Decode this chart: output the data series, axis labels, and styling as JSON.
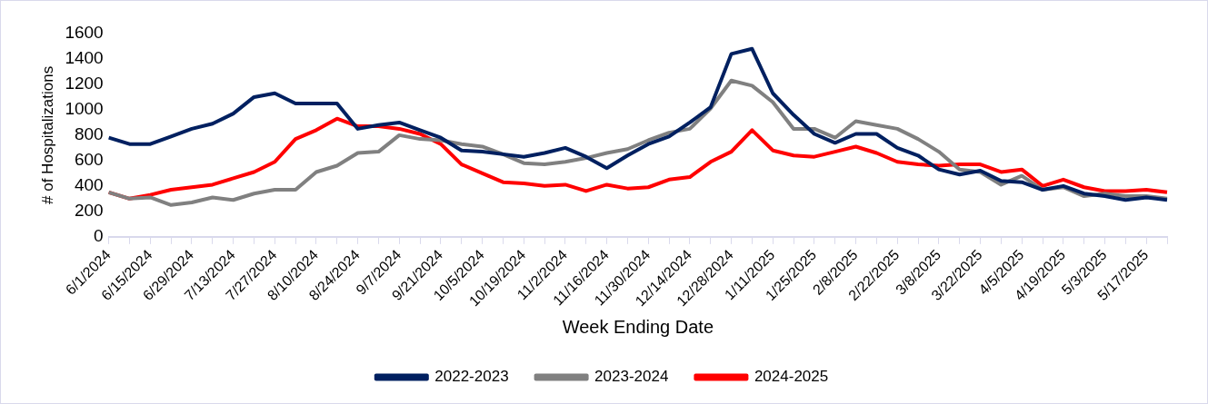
{
  "chart_data": {
    "type": "line",
    "xlabel": "Week Ending Date",
    "ylabel": "# of Hospitalizations",
    "categories": [
      "6/1/2024",
      null,
      "6/15/2024",
      null,
      "6/29/2024",
      null,
      "7/13/2024",
      null,
      "7/27/2024",
      null,
      "8/10/2024",
      null,
      "8/24/2024",
      null,
      "9/7/2024",
      null,
      "9/21/2024",
      null,
      "10/5/2024",
      null,
      "10/19/2024",
      null,
      "11/2/2024",
      null,
      "11/16/2024",
      null,
      "11/30/2024",
      null,
      "12/14/2024",
      null,
      "12/28/2024",
      null,
      "1/11/2025",
      null,
      "1/25/2025",
      null,
      "2/8/2025",
      null,
      "2/22/2025",
      null,
      "3/8/2025",
      null,
      "3/22/2025",
      null,
      "4/5/2025",
      null,
      "4/19/2025",
      null,
      "5/3/2025",
      null,
      "5/17/2025",
      null
    ],
    "series": [
      {
        "name": "2022-2023",
        "color": "#002060",
        "values": [
          780,
          730,
          730,
          790,
          850,
          890,
          970,
          1100,
          1130,
          1050,
          1050,
          1050,
          850,
          880,
          900,
          840,
          780,
          680,
          670,
          650,
          630,
          660,
          700,
          630,
          540,
          640,
          730,
          790,
          900,
          1020,
          1440,
          1480,
          1130,
          960,
          810,
          740,
          810,
          810,
          700,
          640,
          530,
          490,
          520,
          440,
          430,
          370,
          400,
          340,
          320,
          290,
          310,
          290
        ]
      },
      {
        "name": "2023-2024",
        "color": "#808080",
        "values": [
          350,
          300,
          310,
          250,
          270,
          310,
          290,
          340,
          370,
          370,
          510,
          560,
          660,
          670,
          800,
          770,
          760,
          730,
          710,
          650,
          580,
          570,
          590,
          620,
          660,
          690,
          760,
          820,
          850,
          1010,
          1230,
          1190,
          1060,
          850,
          850,
          780,
          910,
          880,
          850,
          770,
          670,
          530,
          510,
          410,
          480,
          370,
          390,
          320,
          340,
          320,
          320,
          300
        ]
      },
      {
        "name": "2024-2025",
        "color": "#ff0000",
        "values": [
          350,
          300,
          330,
          370,
          390,
          410,
          460,
          510,
          590,
          770,
          840,
          930,
          870,
          870,
          850,
          810,
          730,
          570,
          500,
          430,
          420,
          400,
          410,
          360,
          410,
          380,
          390,
          450,
          470,
          590,
          670,
          840,
          680,
          640,
          630,
          670,
          710,
          660,
          590,
          570,
          560,
          570,
          570,
          510,
          530,
          400,
          450,
          390,
          360,
          360,
          370,
          350
        ]
      }
    ],
    "ylim": [
      0,
      1600
    ],
    "yticks": [
      0,
      200,
      400,
      600,
      800,
      1000,
      1200,
      1400,
      1600
    ],
    "grid": false,
    "legend": "bottom",
    "marker": "none",
    "line_style": "solid"
  }
}
